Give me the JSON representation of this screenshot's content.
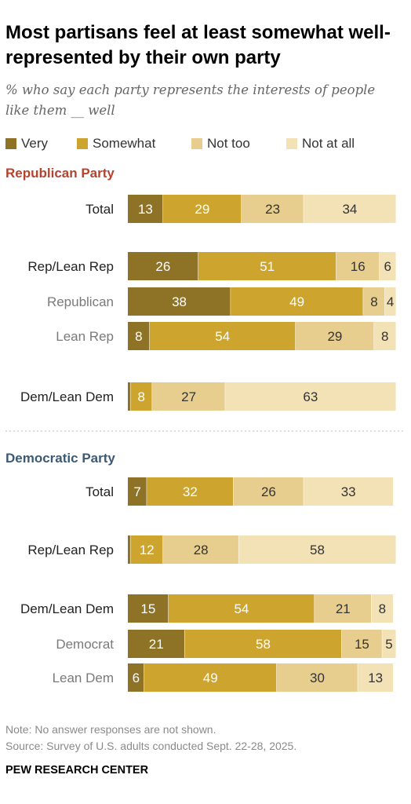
{
  "title": "Most partisans feel at least somewhat well-represented by their own party",
  "subtitle": "% who say each party represents the interests of people like them __ well",
  "note": "Note: No answer responses are not shown.",
  "source": "Source: Survey of U.S. adults conducted Sept. 22-28, 2025.",
  "logo": "PEW RESEARCH CENTER",
  "chart_data": {
    "type": "bar",
    "orientation": "horizontal",
    "stacked": true,
    "legend_position": "top",
    "legend": [
      {
        "name": "Very",
        "color": "#8e7226"
      },
      {
        "name": "Somewhat",
        "color": "#cda52e"
      },
      {
        "name": "Not too",
        "color": "#e8ce8e"
      },
      {
        "name": "Not at all",
        "color": "#f2e2b6"
      }
    ],
    "xlim": [
      0,
      100
    ],
    "panels": [
      {
        "title": "Republican Party",
        "title_color": "#b5442f",
        "rows": [
          {
            "label": "Total",
            "type": "total",
            "values": [
              13,
              29,
              23,
              34
            ]
          },
          {
            "label": "Rep/Lean Rep",
            "type": "group",
            "values": [
              26,
              51,
              16,
              6
            ]
          },
          {
            "label": "Republican",
            "type": "sub",
            "values": [
              38,
              49,
              8,
              4
            ]
          },
          {
            "label": "Lean Rep",
            "type": "sub",
            "values": [
              8,
              54,
              29,
              8
            ]
          },
          {
            "label": "Dem/Lean Dem",
            "type": "group",
            "values": [
              1,
              8,
              27,
              63
            ],
            "labels": [
              "",
              "8",
              "27",
              "63"
            ]
          }
        ]
      },
      {
        "title": "Democratic Party",
        "title_color": "#3d5a75",
        "rows": [
          {
            "label": "Total",
            "type": "total",
            "values": [
              7,
              32,
              26,
              33
            ]
          },
          {
            "label": "Rep/Lean Rep",
            "type": "group",
            "values": [
              1,
              12,
              28,
              58
            ],
            "labels": [
              "",
              "12",
              "28",
              "58"
            ]
          },
          {
            "label": "Dem/Lean Dem",
            "type": "group",
            "values": [
              15,
              54,
              21,
              8
            ]
          },
          {
            "label": "Democrat",
            "type": "sub",
            "values": [
              21,
              58,
              15,
              5
            ]
          },
          {
            "label": "Lean Dem",
            "type": "sub",
            "values": [
              6,
              49,
              30,
              13
            ]
          }
        ]
      }
    ]
  }
}
